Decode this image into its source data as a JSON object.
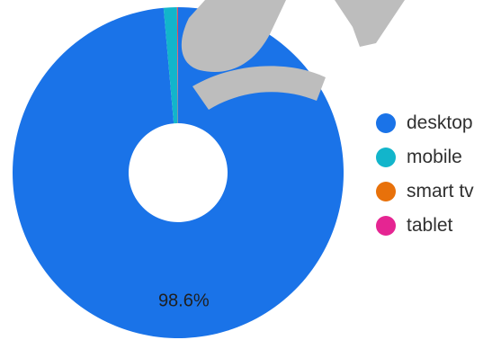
{
  "chart_data": {
    "type": "pie",
    "donut": true,
    "categories": [
      "desktop",
      "mobile",
      "smart tv",
      "tablet"
    ],
    "values": [
      98.6,
      1.3,
      0.05,
      0.05
    ],
    "data_labels": [
      "98.6%",
      "",
      "",
      ""
    ],
    "colors": [
      "#1a73e8",
      "#12b5cb",
      "#e8710a",
      "#e52592"
    ],
    "legend_position": "right",
    "title": "",
    "watermark_color": "#bdbdbd"
  },
  "legend": {
    "items": [
      {
        "label": "desktop",
        "color": "#1a73e8"
      },
      {
        "label": "mobile",
        "color": "#12b5cb"
      },
      {
        "label": "smart tv",
        "color": "#e8710a"
      },
      {
        "label": "tablet",
        "color": "#e52592"
      }
    ]
  }
}
